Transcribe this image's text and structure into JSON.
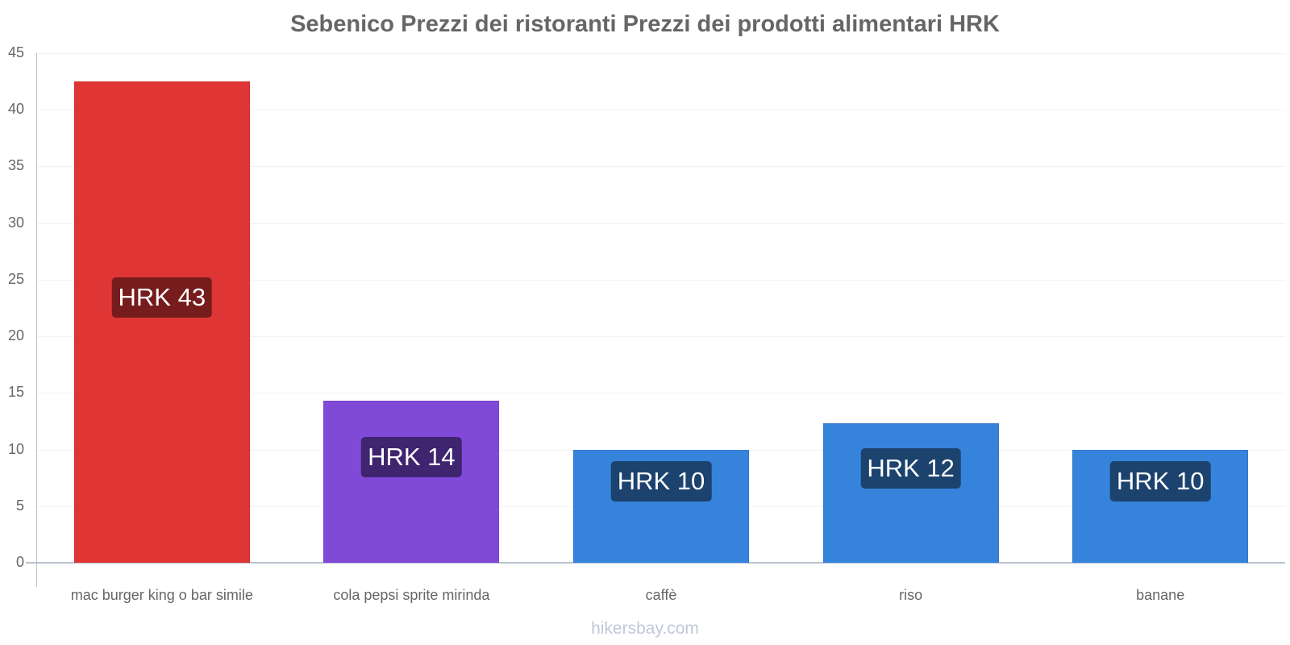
{
  "chart_data": {
    "type": "bar",
    "title": "Sebenico Prezzi dei ristoranti Prezzi dei prodotti alimentari HRK",
    "xlabel": "",
    "ylabel": "",
    "ylim": [
      0,
      45
    ],
    "yticks": [
      0,
      5,
      10,
      15,
      20,
      25,
      30,
      35,
      40,
      45
    ],
    "grid": true,
    "legend": null,
    "categories": [
      "mac burger king o bar simile",
      "cola pepsi sprite mirinda",
      "caffè",
      "riso",
      "banane"
    ],
    "values": [
      42.5,
      14.3,
      10.0,
      12.3,
      10.0
    ],
    "data_labels": [
      "HRK 43",
      "HRK 14",
      "HRK 10",
      "HRK 12",
      "HRK 10"
    ],
    "colors": [
      "#e03535",
      "#8049d8",
      "#3683dc",
      "#3683dc",
      "#3683dc"
    ],
    "label_colors": [
      "#761c1c",
      "#3f2470",
      "#1c426e",
      "#1c426e",
      "#1c426e"
    ]
  },
  "title": "Sebenico Prezzi dei ristoranti Prezzi dei prodotti alimentari HRK",
  "yticks": [
    "0",
    "5",
    "10",
    "15",
    "20",
    "25",
    "30",
    "35",
    "40",
    "45"
  ],
  "bars": [
    {
      "category": "mac burger king o bar simile",
      "label": "HRK 43"
    },
    {
      "category": "cola pepsi sprite mirinda",
      "label": "HRK 14"
    },
    {
      "category": "caffè",
      "label": "HRK 10"
    },
    {
      "category": "riso",
      "label": "HRK 12"
    },
    {
      "category": "banane",
      "label": "HRK 10"
    }
  ],
  "watermark": "hikersbay.com"
}
